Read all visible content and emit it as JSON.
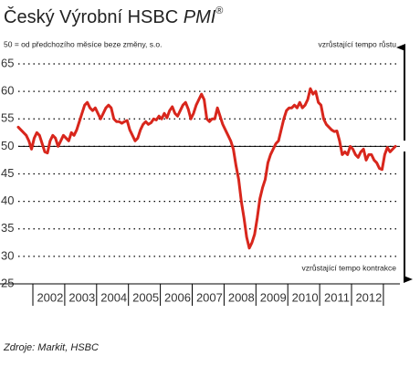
{
  "chart_data": {
    "type": "line",
    "title": "Český Výrobní HSBC ",
    "title_emphasis": "PMI",
    "title_mark": "®",
    "subtitle": "50 = od předchozího měsíce beze změny, s.o.",
    "annotation_top": "vzrůstající tempo růstu",
    "annotation_bottom": "vzrůstající tempo kontrakce",
    "source": "Zdroje: Markit, HSBC",
    "ylim": [
      25,
      65
    ],
    "yticks": [
      25,
      30,
      35,
      40,
      45,
      50,
      55,
      60,
      65
    ],
    "grid": true,
    "reference_line": 50,
    "categories": [
      null,
      null,
      null,
      null,
      null,
      null,
      null,
      null,
      null,
      null,
      null,
      null,
      "2002",
      null,
      null,
      null,
      null,
      null,
      null,
      null,
      null,
      null,
      null,
      null,
      "2003",
      null,
      null,
      null,
      null,
      null,
      null,
      null,
      null,
      null,
      null,
      null,
      "2004",
      null,
      null,
      null,
      null,
      null,
      null,
      null,
      null,
      null,
      null,
      null,
      "2005",
      null,
      null,
      null,
      null,
      null,
      null,
      null,
      null,
      null,
      null,
      null,
      "2006",
      null,
      null,
      null,
      null,
      null,
      null,
      null,
      null,
      null,
      null,
      null,
      "2007",
      null,
      null,
      null,
      null,
      null,
      null,
      null,
      null,
      null,
      null,
      null,
      "2008",
      null,
      null,
      null,
      null,
      null,
      null,
      null,
      null,
      null,
      null,
      null,
      "2009",
      null,
      null,
      null,
      null,
      null,
      null,
      null,
      null,
      null,
      null,
      null,
      "2010",
      null,
      null,
      null,
      null,
      null,
      null,
      null,
      null,
      null,
      null,
      null,
      "2011",
      null,
      null,
      null,
      null,
      null,
      null,
      null,
      null,
      null,
      null,
      null,
      "2012",
      null,
      null,
      null,
      null,
      null,
      null,
      null,
      null,
      null,
      null
    ],
    "series": [
      {
        "color": "#d8261c",
        "values": [
          53.5,
          53,
          52.5,
          52,
          51,
          49.5,
          51.5,
          52.5,
          52,
          50.5,
          49,
          48.8,
          51,
          52,
          51.5,
          50,
          51,
          52,
          51.5,
          51,
          52.5,
          52,
          53,
          54.5,
          56,
          57.5,
          58,
          57,
          56.5,
          57,
          56,
          55,
          56,
          57,
          57.5,
          57,
          55,
          54.5,
          54.5,
          54.2,
          54.5,
          54.7,
          53,
          52,
          51,
          51.5,
          53,
          54,
          54.5,
          54,
          54.3,
          55,
          54.8,
          55.5,
          55,
          56,
          55.2,
          56.5,
          57.2,
          56,
          55.5,
          56.5,
          57.5,
          58,
          56.8,
          55,
          56,
          57.5,
          58.5,
          59.5,
          58.5,
          55,
          54.5,
          55,
          55,
          57,
          55.5,
          54,
          53,
          52,
          51,
          49.5,
          46.5,
          44,
          40,
          37,
          33.5,
          31.5,
          32.5,
          34,
          37,
          40.5,
          42.5,
          44,
          47,
          48.5,
          49.5,
          50.5,
          51,
          53,
          55,
          56.5,
          57,
          57,
          57.5,
          57,
          58,
          57,
          57.5,
          58.5,
          60.5,
          59.5,
          60,
          58,
          57.5,
          55,
          54,
          53.5,
          53,
          52.7,
          52.8,
          51,
          48.5,
          49,
          48.5,
          50,
          49.5,
          48.5,
          48,
          49,
          49.5,
          47.5,
          48.5,
          48.5,
          47.5,
          47,
          46,
          45.8,
          48.5,
          49.8,
          49,
          49.5,
          50
        ]
      }
    ]
  }
}
